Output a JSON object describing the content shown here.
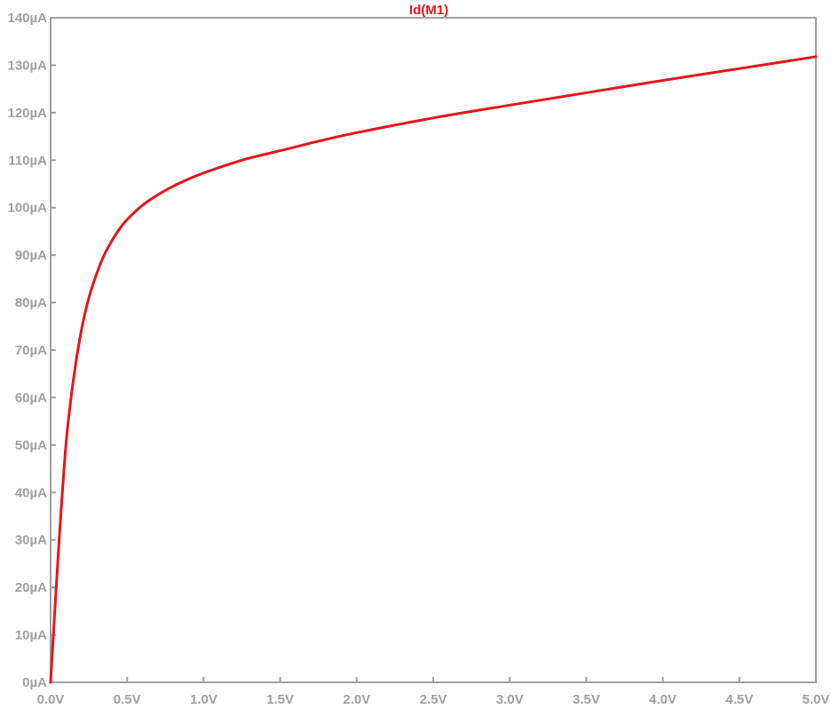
{
  "chart_data": {
    "type": "line",
    "title": "",
    "xlabel": "",
    "ylabel": "",
    "xlim": [
      0,
      5
    ],
    "ylim": [
      0,
      140
    ],
    "grid": false,
    "x_ticks": [
      0,
      0.5,
      1,
      1.5,
      2,
      2.5,
      3,
      3.5,
      4,
      4.5,
      5
    ],
    "x_tick_labels": [
      "0.0V",
      "0.5V",
      "1.0V",
      "1.5V",
      "2.0V",
      "2.5V",
      "3.0V",
      "3.5V",
      "4.0V",
      "4.5V",
      "5.0V"
    ],
    "y_ticks": [
      0,
      10,
      20,
      30,
      40,
      50,
      60,
      70,
      80,
      90,
      100,
      110,
      120,
      130,
      140
    ],
    "y_tick_labels": [
      "0µA",
      "10µA",
      "20µA",
      "30µA",
      "40µA",
      "50µA",
      "60µA",
      "70µA",
      "80µA",
      "90µA",
      "100µA",
      "110µA",
      "120µA",
      "130µA",
      "140µA"
    ],
    "series": [
      {
        "name": "Id(M1)",
        "color": "#e8141b",
        "x": [
          0,
          0.05,
          0.1,
          0.15,
          0.2,
          0.25,
          0.3,
          0.35,
          0.4,
          0.45,
          0.5,
          0.6,
          0.7,
          0.8,
          0.9,
          1.0,
          1.25,
          1.5,
          1.75,
          2.0,
          2.5,
          3.0,
          3.5,
          4.0,
          4.5,
          5.0
        ],
        "y": [
          0,
          27,
          50,
          64,
          74,
          81,
          86,
          90,
          93,
          95.5,
          97.5,
          100.5,
          102.7,
          104.5,
          106,
          107.3,
          110,
          112,
          114,
          115.8,
          118.9,
          121.6,
          124.2,
          126.8,
          129.3,
          131.8
        ]
      }
    ]
  },
  "colors": {
    "axis": "#a0a0a0",
    "tick_text": "#a0a0a0",
    "background": "#ffffff"
  }
}
